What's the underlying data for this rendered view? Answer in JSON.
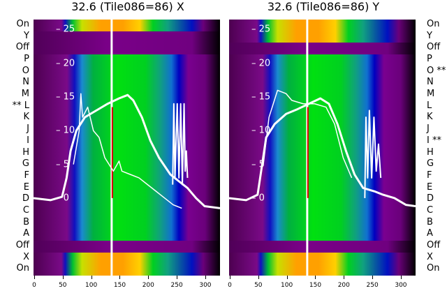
{
  "chart_data": [
    {
      "type": "heatmap",
      "title": "32.6 (Tile086=86) X",
      "row_labels": [
        "On",
        "Y",
        "Off",
        "P",
        "O",
        "N",
        "M",
        "** L",
        "K",
        "J",
        "I",
        "H",
        "G",
        "F",
        "E",
        "D",
        "C",
        "B",
        "A",
        "Off",
        "X",
        "On"
      ],
      "row_kind": [
        "on",
        "off",
        "off",
        "d",
        "d",
        "d",
        "d",
        "d",
        "d",
        "d",
        "d",
        "d",
        "d",
        "d",
        "d",
        "d",
        "d",
        "d",
        "d",
        "off",
        "on",
        "on"
      ],
      "xlim": [
        0,
        327
      ],
      "xticks": [
        0,
        50,
        100,
        150,
        200,
        250,
        300
      ],
      "inner_ylim": [
        -11.5,
        26.5
      ],
      "inner_yticks": [
        0,
        5,
        10,
        15,
        20,
        25
      ],
      "marker_x": 137,
      "series": [
        {
          "name": "mean",
          "width": 3,
          "points": [
            [
              0,
              0
            ],
            [
              30,
              -0.3
            ],
            [
              50,
              0.2
            ],
            [
              58,
              3
            ],
            [
              65,
              7
            ],
            [
              75,
              10
            ],
            [
              90,
              12
            ],
            [
              110,
              13
            ],
            [
              130,
              14
            ],
            [
              150,
              14.8
            ],
            [
              165,
              15.3
            ],
            [
              175,
              14.5
            ],
            [
              190,
              12
            ],
            [
              205,
              8.5
            ],
            [
              220,
              6
            ],
            [
              240,
              3.5
            ],
            [
              255,
              2.5
            ],
            [
              270,
              1.5
            ],
            [
              285,
              0
            ],
            [
              300,
              -1.2
            ],
            [
              327,
              -1.5
            ]
          ]
        },
        {
          "name": "single",
          "width": 1.5,
          "points": [
            [
              70,
              5
            ],
            [
              80,
              10
            ],
            [
              83,
              15.5
            ],
            [
              86,
              12
            ],
            [
              95,
              13.5
            ],
            [
              105,
              10
            ],
            [
              115,
              9
            ],
            [
              125,
              6
            ],
            [
              140,
              4
            ],
            [
              150,
              5.5
            ],
            [
              155,
              4
            ],
            [
              170,
              3.5
            ],
            [
              185,
              3
            ],
            [
              200,
              2
            ],
            [
              215,
              1
            ],
            [
              230,
              0
            ],
            [
              245,
              -1
            ],
            [
              260,
              -1.5
            ]
          ]
        },
        {
          "name": "spikes",
          "width": 2,
          "points": [
            [
              244,
              2
            ],
            [
              246,
              14
            ],
            [
              248,
              3
            ],
            [
              252,
              14
            ],
            [
              255,
              3
            ],
            [
              258,
              14
            ],
            [
              261,
              2
            ],
            [
              264,
              14
            ],
            [
              266,
              4
            ],
            [
              268,
              7
            ],
            [
              270,
              3
            ]
          ]
        }
      ]
    },
    {
      "type": "heatmap",
      "title": "32.6 (Tile086=86) Y",
      "row_labels": [
        "On",
        "Y",
        "Off",
        "P",
        "O **",
        "N",
        "M",
        "L",
        "K",
        "J",
        "I **",
        "H",
        "G",
        "F",
        "E",
        "D",
        "C",
        "B",
        "A",
        "Off",
        "X",
        "On"
      ],
      "row_kind": [
        "on",
        "on",
        "off",
        "d",
        "d",
        "d",
        "d",
        "d",
        "d",
        "d",
        "d",
        "d",
        "d",
        "d",
        "d",
        "d",
        "d",
        "d",
        "d",
        "off",
        "on",
        "on"
      ],
      "xlim": [
        0,
        327
      ],
      "xticks": [
        0,
        50,
        100,
        150,
        200,
        250,
        300
      ],
      "inner_ylim": [
        -11.5,
        26.5
      ],
      "inner_yticks": [
        0,
        5,
        10,
        15,
        20,
        25
      ],
      "marker_x": 137,
      "series": [
        {
          "name": "mean",
          "width": 3,
          "points": [
            [
              0,
              0
            ],
            [
              30,
              -0.3
            ],
            [
              50,
              0.5
            ],
            [
              58,
              5
            ],
            [
              65,
              9
            ],
            [
              80,
              11
            ],
            [
              100,
              12.5
            ],
            [
              120,
              13.2
            ],
            [
              140,
              14
            ],
            [
              160,
              14.8
            ],
            [
              175,
              14
            ],
            [
              190,
              11
            ],
            [
              205,
              7
            ],
            [
              220,
              3.5
            ],
            [
              235,
              1.5
            ],
            [
              255,
              1
            ],
            [
              270,
              0.5
            ],
            [
              290,
              0
            ],
            [
              310,
              -1
            ],
            [
              327,
              -1.2
            ]
          ]
        },
        {
          "name": "single",
          "width": 1.5,
          "points": [
            [
              60,
              5
            ],
            [
              70,
              12
            ],
            [
              85,
              16
            ],
            [
              100,
              15.5
            ],
            [
              110,
              14.5
            ],
            [
              130,
              14
            ],
            [
              150,
              14
            ],
            [
              170,
              13.5
            ],
            [
              185,
              11
            ],
            [
              200,
              6
            ],
            [
              215,
              3
            ]
          ]
        },
        {
          "name": "spikes",
          "width": 2,
          "points": [
            [
              238,
              0
            ],
            [
              240,
              12
            ],
            [
              243,
              3
            ],
            [
              246,
              13
            ],
            [
              250,
              3
            ],
            [
              254,
              12
            ],
            [
              258,
              4
            ],
            [
              262,
              8
            ],
            [
              266,
              3
            ]
          ]
        }
      ]
    }
  ]
}
